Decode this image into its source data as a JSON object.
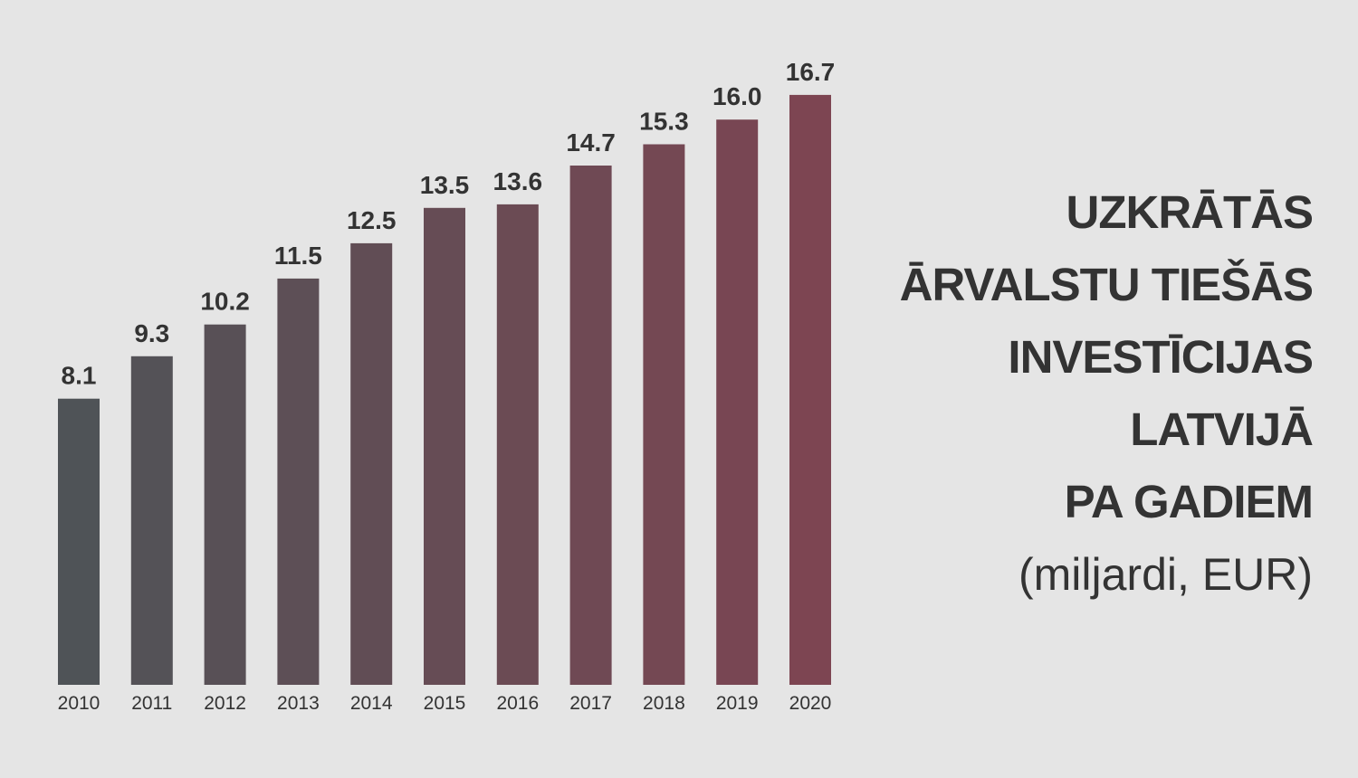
{
  "chart_data": {
    "type": "bar",
    "categories": [
      "2010",
      "2011",
      "2012",
      "2013",
      "2014",
      "2015",
      "2016",
      "2017",
      "2018",
      "2019",
      "2020"
    ],
    "values": [
      8.1,
      9.3,
      10.2,
      11.5,
      12.5,
      13.5,
      13.6,
      14.7,
      15.3,
      16.0,
      16.7
    ],
    "value_labels": [
      "8.1",
      "9.3",
      "10.2",
      "11.5",
      "12.5",
      "13.5",
      "13.6",
      "14.7",
      "15.3",
      "16.0",
      "16.7"
    ],
    "title_lines": [
      "UZKRĀTĀS",
      "ĀRVALSTU TIEŠĀS",
      "INVESTĪCIJAS",
      "LATVIJĀ",
      "PA GADIEM"
    ],
    "subtitle": "(miljardi, EUR)",
    "xlabel": "",
    "ylabel": "",
    "ylim": [
      0,
      16.7
    ],
    "grid": false,
    "color_start": "#4f5357",
    "color_end": "#7d4552"
  }
}
